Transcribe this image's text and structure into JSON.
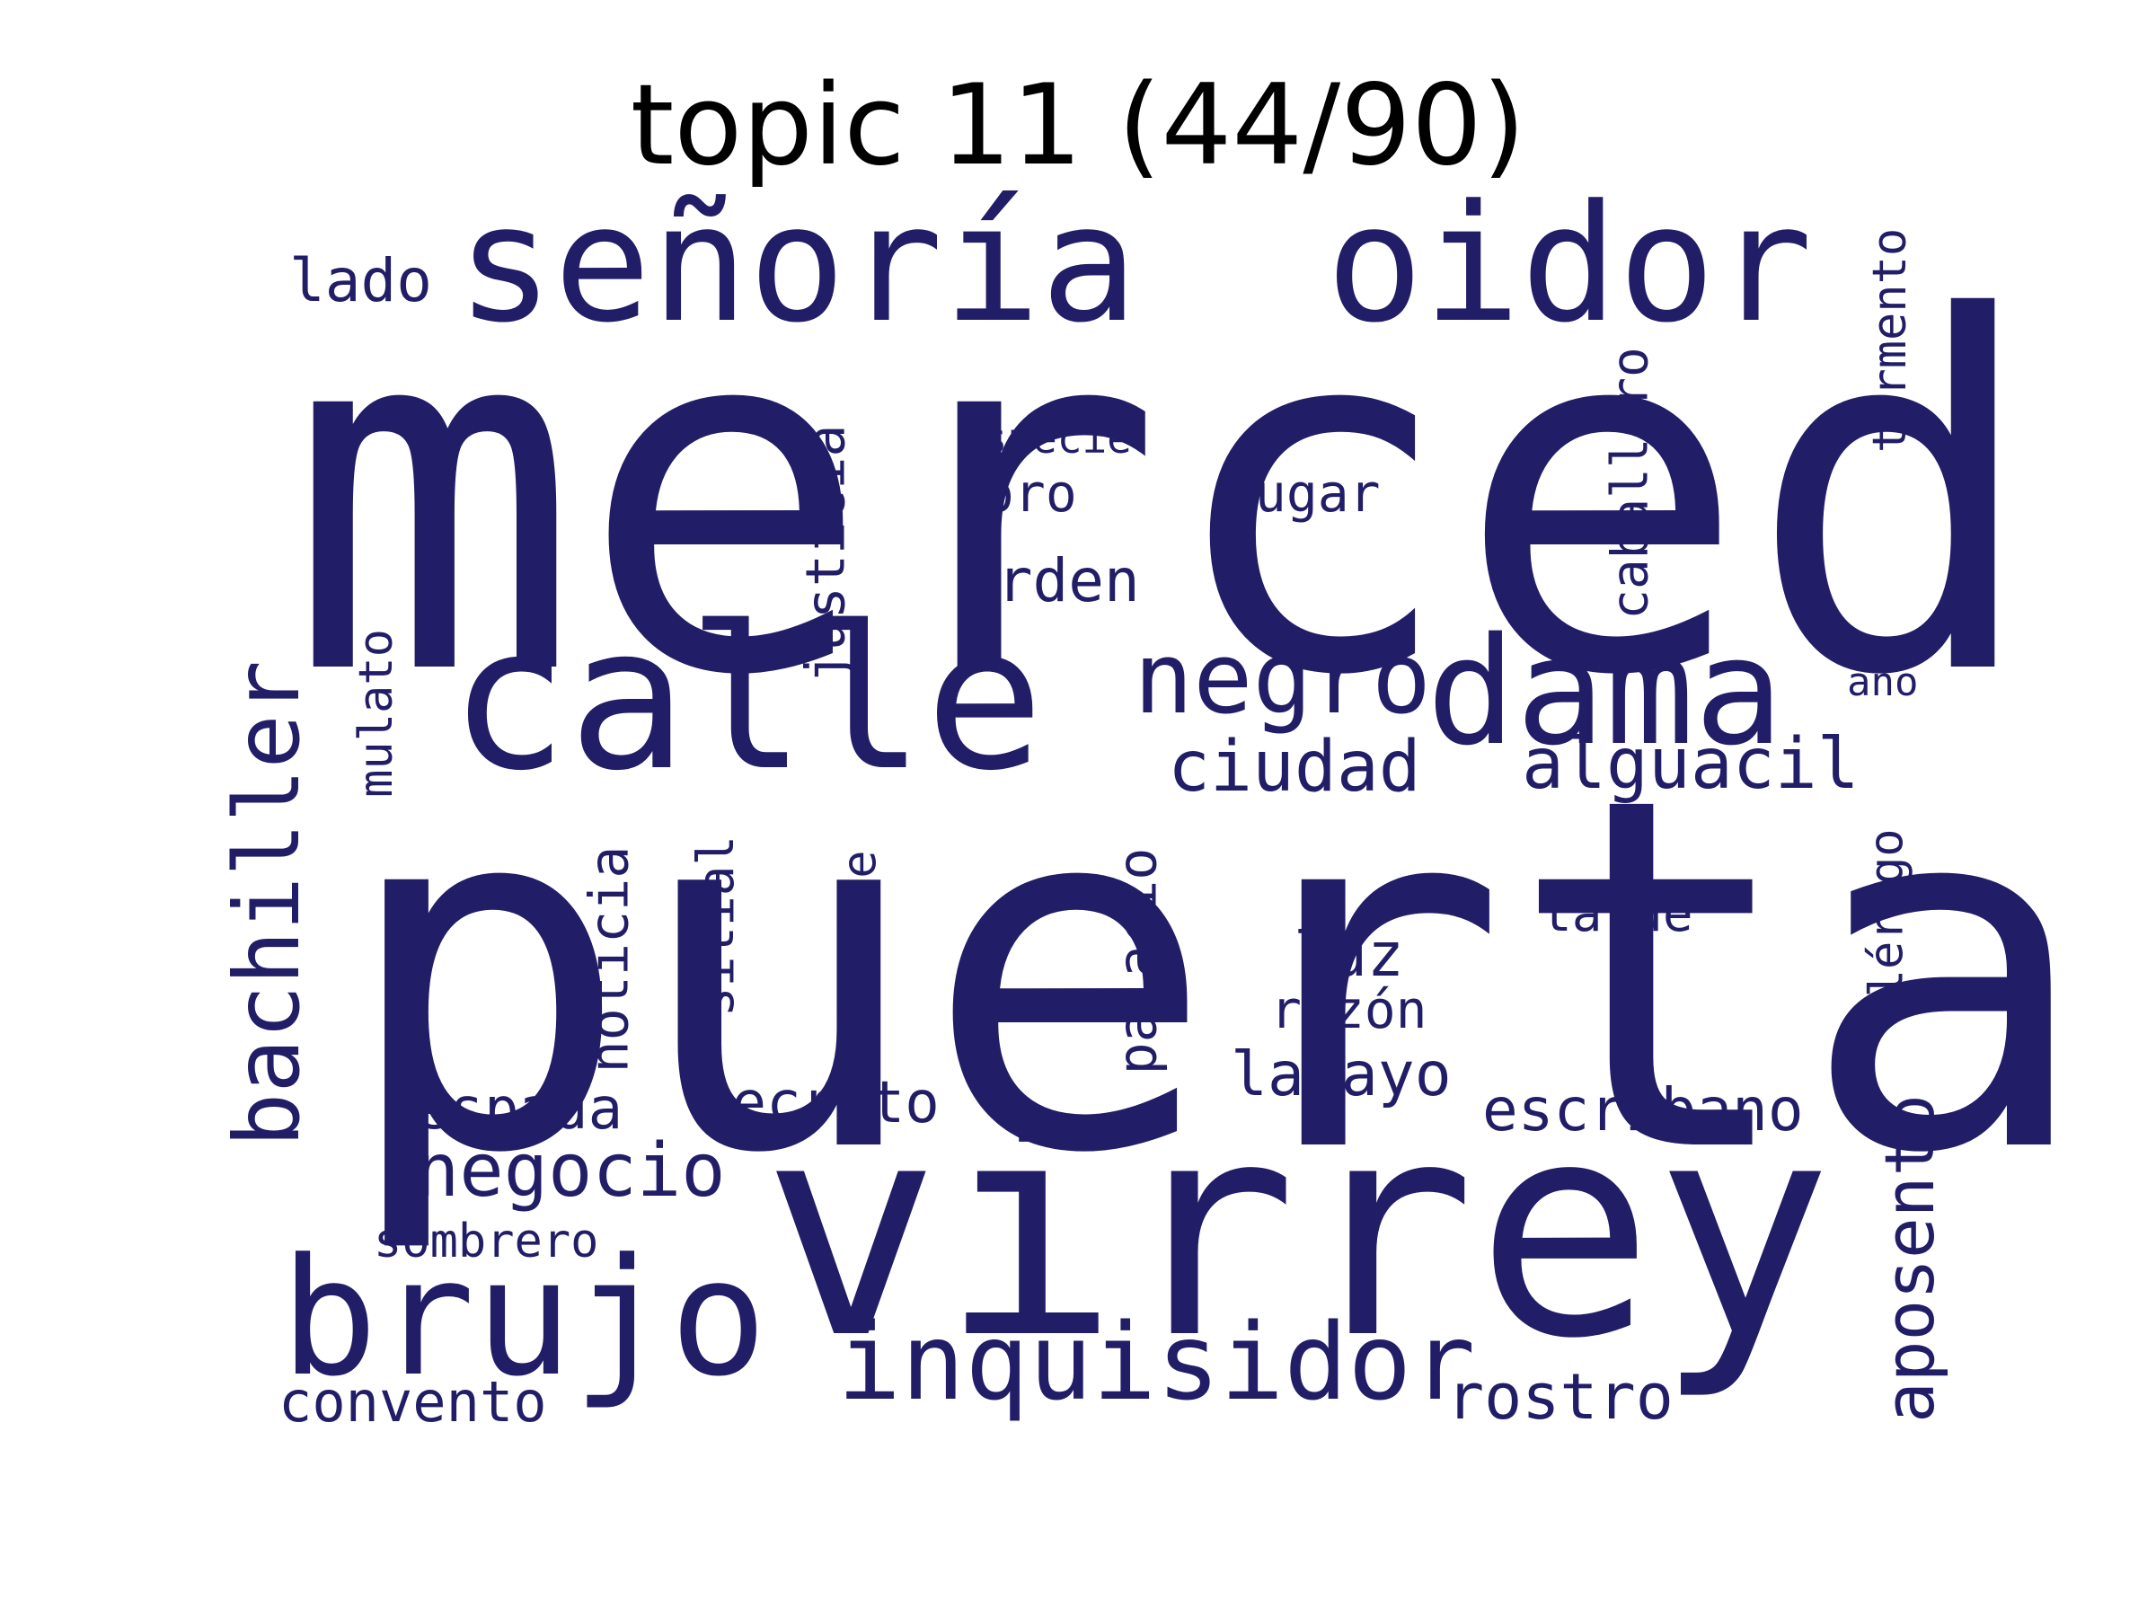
{
  "title": "topic 11 (44/90)",
  "colors": {
    "word": "#221d67",
    "title": "#000000",
    "background": "#ffffff"
  },
  "words": {
    "merced": "merced",
    "puerta": "puerta",
    "virrey": "virrey",
    "senoria": "señoría",
    "oidor": "oidor",
    "calle": "calle",
    "dama": "dama",
    "negro": "negro",
    "brujo": "brujo",
    "inquisidor": "inquisidor",
    "ciudad": "ciudad",
    "alguacil": "alguacil",
    "lado": "lado",
    "oro": "oro",
    "especie": "especie",
    "lugar": "lugar",
    "orden": "orden",
    "ano": "año",
    "tarde": "tarde",
    "luz": "luz",
    "razon": "razón",
    "lacayo": "lacayo",
    "escribano": "escribano",
    "espada": "espada",
    "secreto": "secreto",
    "negocio": "negocio",
    "sombrero": "sombrero",
    "rostro": "rostro",
    "convento": "convento",
    "bachiller": "bachiller",
    "mulato": "mulato",
    "justicia": "justicia",
    "caballero": "caballero",
    "tormento": "tormento",
    "noticia": "noticia",
    "sitial": "sitial",
    "alcalde": "alcalde",
    "palacio": "palacio",
    "clerigo": "clérigo",
    "aposento": "aposento"
  }
}
